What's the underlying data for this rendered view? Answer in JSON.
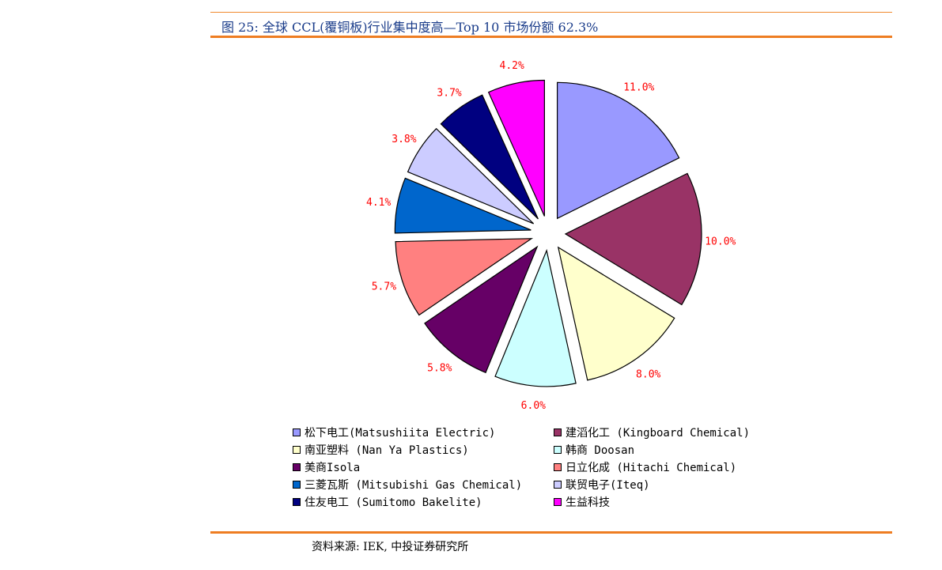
{
  "title": "图 25: 全球 CCL(覆铜板)行业集中度高—Top 10 市场份额 62.3%",
  "source": "资料来源: IEK, 中投证券研究所",
  "colors": {
    "accent_rule": "#ee7d22",
    "title_color": "#1a3c8a",
    "label_color": "#ff0000"
  },
  "chart_data": {
    "type": "pie",
    "title": "",
    "unit": "%",
    "legend_position": "bottom",
    "series": [
      {
        "name": "松下电工(Matsushiita Electric)",
        "value": 11.0,
        "label": "11.0%",
        "color": "#9999ff"
      },
      {
        "name": "建滔化工 (Kingboard Chemical)",
        "value": 10.0,
        "label": "10.0%",
        "color": "#993366"
      },
      {
        "name": "南亚塑料 (Nan Ya Plastics)",
        "value": 8.0,
        "label": "8.0%",
        "color": "#ffffcc"
      },
      {
        "name": "韩商 Doosan",
        "value": 6.0,
        "label": "6.0%",
        "color": "#ccffff"
      },
      {
        "name": "美商Isola",
        "value": 5.8,
        "label": "5.8%",
        "color": "#660066"
      },
      {
        "name": "日立化成 (Hitachi Chemical)",
        "value": 5.7,
        "label": "5.7%",
        "color": "#ff8080"
      },
      {
        "name": "三菱瓦斯 (Mitsubishi Gas Chemical)",
        "value": 4.1,
        "label": "4.1%",
        "color": "#0066cc"
      },
      {
        "name": "联贸电子(Iteq)",
        "value": 3.8,
        "label": "3.8%",
        "color": "#ccccff"
      },
      {
        "name": "住友电工 (Sumitomo Bakelite)",
        "value": 3.7,
        "label": "3.7%",
        "color": "#000080"
      },
      {
        "name": "生益科技",
        "value": 4.2,
        "label": "4.2%",
        "color": "#ff00ff"
      }
    ]
  }
}
